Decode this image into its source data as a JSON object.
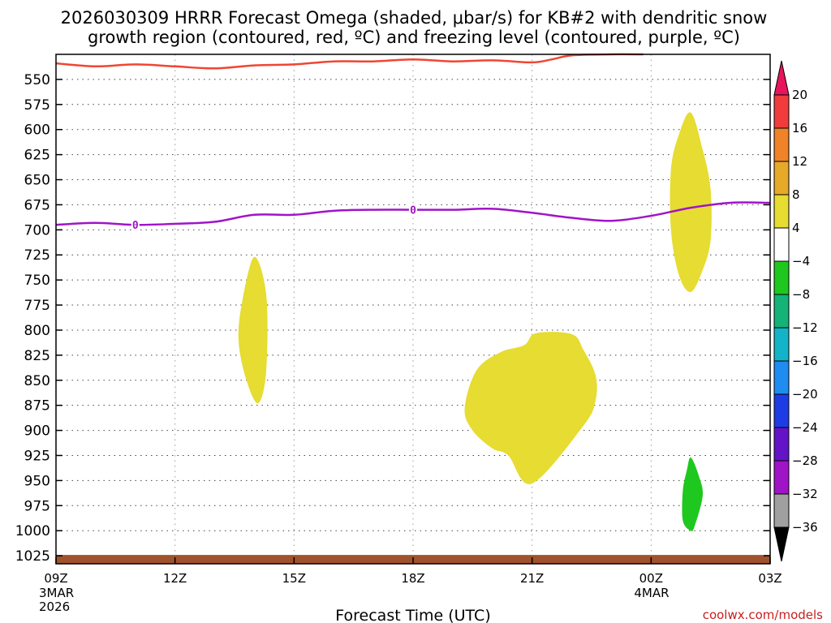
{
  "chart_data": {
    "type": "heatmap",
    "title_line1": "2026030309 HRRR Forecast Omega (shaded, μbar/s) for KB#2 with dendritic snow",
    "title_line2": "growth region (contoured, red, ºC) and freezing level (contoured, purple, ºC)",
    "xlabel": "Forecast Time (UTC)",
    "x_ticks": [
      {
        "hour": 0,
        "label": "09Z",
        "sub": [
          "3MAR",
          "2026"
        ]
      },
      {
        "hour": 3,
        "label": "12Z",
        "sub": []
      },
      {
        "hour": 6,
        "label": "15Z",
        "sub": []
      },
      {
        "hour": 9,
        "label": "18Z",
        "sub": []
      },
      {
        "hour": 12,
        "label": "21Z",
        "sub": []
      },
      {
        "hour": 15,
        "label": "00Z",
        "sub": [
          "4MAR"
        ]
      },
      {
        "hour": 18,
        "label": "03Z",
        "sub": []
      }
    ],
    "x_range_hours": [
      0,
      18
    ],
    "y_ticks": [
      550,
      575,
      600,
      625,
      650,
      675,
      700,
      725,
      750,
      775,
      800,
      825,
      850,
      875,
      900,
      925,
      950,
      975,
      1000,
      1025
    ],
    "y_range_hpa": [
      525,
      1033
    ],
    "grid": true,
    "colorbar": {
      "levels": [
        "20",
        "16",
        "12",
        "8",
        "4",
        "−4",
        "−8",
        "−12",
        "−16",
        "−20",
        "−24",
        "−28",
        "−32",
        "−36"
      ],
      "colors": [
        "#e8145e",
        "#f03c3c",
        "#f08228",
        "#e6aa28",
        "#e6dc32",
        "#ffffff",
        "#1ec81e",
        "#14b478",
        "#14b4c8",
        "#1e8cf0",
        "#1e3ce6",
        "#6414c8",
        "#a014c8",
        "#a0a0a0",
        "#000000"
      ]
    },
    "series": [
      {
        "name": "dendritic snow growth region",
        "color": "#f04632",
        "points": [
          [
            0.0,
            534
          ],
          [
            1.0,
            537
          ],
          [
            2.0,
            535
          ],
          [
            3.0,
            537
          ],
          [
            4.0,
            539
          ],
          [
            5.0,
            536
          ],
          [
            6.0,
            535
          ],
          [
            7.0,
            532
          ],
          [
            8.0,
            532
          ],
          [
            9.0,
            530
          ],
          [
            10.0,
            532
          ],
          [
            11.0,
            531
          ],
          [
            12.0,
            533
          ],
          [
            12.5,
            530
          ],
          [
            13.0,
            526
          ],
          [
            14.0,
            525
          ],
          [
            14.8,
            525
          ]
        ]
      },
      {
        "name": "freezing level",
        "color": "#a014c8",
        "contour_label": "0",
        "label_hours": [
          2.0,
          9.0
        ],
        "points": [
          [
            0.0,
            695
          ],
          [
            1.0,
            693
          ],
          [
            2.0,
            695
          ],
          [
            3.0,
            694
          ],
          [
            4.0,
            692
          ],
          [
            5.0,
            685
          ],
          [
            6.0,
            685
          ],
          [
            7.0,
            681
          ],
          [
            8.0,
            680
          ],
          [
            9.0,
            680
          ],
          [
            10.0,
            680
          ],
          [
            11.0,
            679
          ],
          [
            12.0,
            683
          ],
          [
            13.0,
            688
          ],
          [
            14.0,
            691
          ],
          [
            15.0,
            686
          ],
          [
            16.0,
            678
          ],
          [
            17.0,
            673
          ],
          [
            18.0,
            673
          ]
        ]
      }
    ],
    "shaded_regions": [
      {
        "name": "omega 4-8 area near 14Z",
        "color": "#e6dc32",
        "points": [
          [
            5.0,
            727
          ],
          [
            5.3,
            765
          ],
          [
            5.3,
            840
          ],
          [
            5.1,
            873
          ],
          [
            4.8,
            850
          ],
          [
            4.6,
            810
          ],
          [
            4.7,
            770
          ]
        ]
      },
      {
        "name": "omega 4-8 area 20Z-23Z",
        "color": "#e6dc32",
        "points": [
          [
            12.1,
            803
          ],
          [
            13.0,
            804
          ],
          [
            13.3,
            820
          ],
          [
            13.6,
            845
          ],
          [
            13.6,
            870
          ],
          [
            13.3,
            895
          ],
          [
            12.0,
            953
          ],
          [
            11.4,
            925
          ],
          [
            11.0,
            918
          ],
          [
            10.5,
            900
          ],
          [
            10.3,
            878
          ],
          [
            10.6,
            840
          ],
          [
            11.2,
            822
          ],
          [
            11.8,
            815
          ]
        ]
      },
      {
        "name": "omega 4-8 area near 01Z",
        "color": "#e6dc32",
        "points": [
          [
            16.0,
            583
          ],
          [
            16.3,
            620
          ],
          [
            16.5,
            660
          ],
          [
            16.5,
            710
          ],
          [
            16.3,
            740
          ],
          [
            16.0,
            762
          ],
          [
            15.7,
            745
          ],
          [
            15.5,
            700
          ],
          [
            15.5,
            640
          ],
          [
            15.7,
            605
          ]
        ]
      },
      {
        "name": "omega -4 to -8 area near 01Z",
        "color": "#1ec81e",
        "points": [
          [
            16.0,
            927
          ],
          [
            16.2,
            945
          ],
          [
            16.3,
            965
          ],
          [
            16.1,
            995
          ],
          [
            16.0,
            1000
          ],
          [
            15.8,
            990
          ],
          [
            15.8,
            960
          ],
          [
            15.9,
            940
          ]
        ]
      }
    ],
    "terrain": {
      "name": "surface",
      "color": "#a0522d",
      "top_hpa": 1025
    }
  },
  "credit": "coolwx.com/models"
}
